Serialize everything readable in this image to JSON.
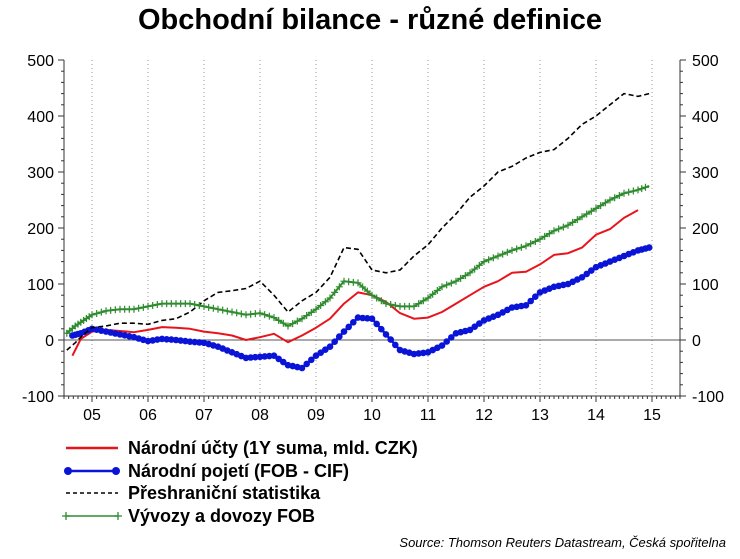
{
  "chart_data": {
    "type": "line",
    "title": "Obchodní bilance - různé definice",
    "x_tick_labels": [
      "05",
      "06",
      "07",
      "08",
      "09",
      "10",
      "11",
      "12",
      "13",
      "14",
      "15"
    ],
    "xlim": [
      2004.5,
      2015.5
    ],
    "ylim": [
      -100,
      500
    ],
    "y_ticks": [
      "-100",
      "0",
      "100",
      "200",
      "300",
      "400",
      "500"
    ],
    "secondary_y_ticks": [
      "-100",
      "0",
      "100",
      "200",
      "300",
      "400",
      "500"
    ],
    "grid": "vertical dotted",
    "legend_position": "bottom",
    "series": [
      {
        "name": "Národní účty (1Y suma, mld. CZK)",
        "color": "#e8141c",
        "style": "solid",
        "marker": "none",
        "x": [
          2004.65,
          2004.8,
          2005.0,
          2005.25,
          2005.5,
          2005.75,
          2006.0,
          2006.25,
          2006.5,
          2006.75,
          2007.0,
          2007.25,
          2007.5,
          2007.75,
          2008.0,
          2008.25,
          2008.5,
          2008.75,
          2009.0,
          2009.25,
          2009.5,
          2009.75,
          2010.0,
          2010.25,
          2010.5,
          2010.75,
          2011.0,
          2011.25,
          2011.5,
          2011.75,
          2012.0,
          2012.25,
          2012.5,
          2012.75,
          2013.0,
          2013.25,
          2013.5,
          2013.75,
          2014.0,
          2014.25,
          2014.5,
          2014.75
        ],
        "y": [
          -28,
          2,
          15,
          18,
          16,
          14,
          18,
          23,
          22,
          20,
          15,
          12,
          8,
          0,
          5,
          11,
          -4,
          8,
          22,
          38,
          65,
          85,
          80,
          68,
          48,
          38,
          40,
          50,
          65,
          80,
          95,
          105,
          120,
          122,
          135,
          152,
          155,
          165,
          188,
          198,
          218,
          232
        ]
      },
      {
        "name": "Národní pojetí (FOB - CIF)",
        "color": "#0a14d6",
        "style": "solid",
        "marker": "circle",
        "x": [
          2004.65,
          2004.8,
          2005.0,
          2005.25,
          2005.5,
          2005.75,
          2006.0,
          2006.25,
          2006.5,
          2006.75,
          2007.0,
          2007.25,
          2007.5,
          2007.75,
          2008.0,
          2008.25,
          2008.5,
          2008.75,
          2009.0,
          2009.25,
          2009.5,
          2009.75,
          2010.0,
          2010.25,
          2010.5,
          2010.75,
          2011.0,
          2011.25,
          2011.5,
          2011.75,
          2012.0,
          2012.25,
          2012.5,
          2012.75,
          2013.0,
          2013.25,
          2013.5,
          2013.75,
          2014.0,
          2014.25,
          2014.5,
          2014.75,
          2014.95
        ],
        "y": [
          8,
          12,
          20,
          15,
          10,
          5,
          -2,
          2,
          0,
          -3,
          -5,
          -12,
          -22,
          -32,
          -30,
          -28,
          -45,
          -50,
          -28,
          -12,
          15,
          40,
          38,
          10,
          -18,
          -25,
          -22,
          -10,
          12,
          18,
          35,
          45,
          58,
          62,
          85,
          95,
          100,
          112,
          130,
          140,
          150,
          160,
          165
        ]
      },
      {
        "name": "Přeshraniční statistika",
        "color": "#000000",
        "style": "dashed",
        "marker": "none",
        "x": [
          2004.55,
          2004.7,
          2004.85,
          2005.0,
          2005.25,
          2005.5,
          2005.75,
          2006.0,
          2006.25,
          2006.5,
          2006.75,
          2007.0,
          2007.25,
          2007.5,
          2007.75,
          2008.0,
          2008.25,
          2008.5,
          2008.75,
          2009.0,
          2009.25,
          2009.5,
          2009.75,
          2010.0,
          2010.25,
          2010.5,
          2010.75,
          2011.0,
          2011.25,
          2011.5,
          2011.75,
          2012.0,
          2012.25,
          2012.5,
          2012.75,
          2013.0,
          2013.25,
          2013.5,
          2013.75,
          2014.0,
          2014.25,
          2014.5,
          2014.75,
          2014.95
        ],
        "y": [
          -18,
          -5,
          10,
          22,
          25,
          30,
          30,
          28,
          35,
          38,
          50,
          70,
          85,
          88,
          92,
          105,
          80,
          50,
          70,
          85,
          112,
          165,
          162,
          125,
          120,
          125,
          150,
          170,
          200,
          225,
          255,
          275,
          300,
          310,
          325,
          335,
          340,
          360,
          385,
          400,
          420,
          440,
          435,
          440
        ]
      },
      {
        "name": "Vývozy a dovozy FOB",
        "color": "#2e8b2e",
        "style": "solid",
        "marker": "plus",
        "x": [
          2004.55,
          2004.7,
          2004.85,
          2005.0,
          2005.25,
          2005.5,
          2005.75,
          2006.0,
          2006.25,
          2006.5,
          2006.75,
          2007.0,
          2007.25,
          2007.5,
          2007.75,
          2008.0,
          2008.25,
          2008.5,
          2008.75,
          2009.0,
          2009.25,
          2009.5,
          2009.75,
          2010.0,
          2010.25,
          2010.5,
          2010.75,
          2011.0,
          2011.25,
          2011.5,
          2011.75,
          2012.0,
          2012.25,
          2012.5,
          2012.75,
          2013.0,
          2013.25,
          2013.5,
          2013.75,
          2014.0,
          2014.25,
          2014.5,
          2014.75,
          2014.95
        ],
        "y": [
          12,
          25,
          35,
          45,
          52,
          55,
          55,
          60,
          65,
          65,
          65,
          60,
          55,
          50,
          45,
          48,
          40,
          25,
          38,
          55,
          75,
          105,
          102,
          80,
          65,
          60,
          60,
          75,
          95,
          105,
          120,
          140,
          150,
          160,
          168,
          180,
          195,
          205,
          220,
          235,
          250,
          262,
          268,
          275
        ]
      }
    ],
    "source": "Source: Thomson Reuters Datastream, Česká spořitelna"
  }
}
